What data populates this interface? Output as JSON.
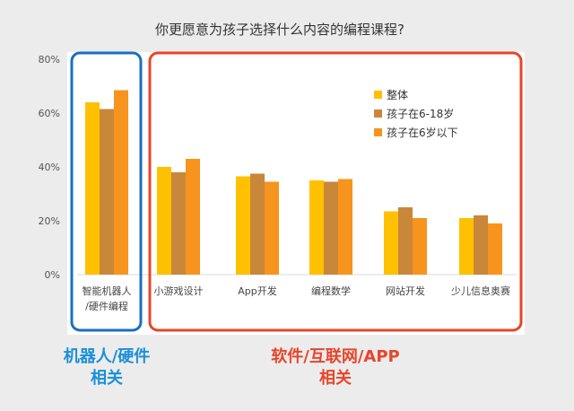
{
  "chart_data": {
    "type": "bar",
    "title": "你更愿意为孩子选择什么内容的编程课程?",
    "categories": [
      [
        "智能机器人",
        "/硬件编程"
      ],
      [
        "小游戏设计"
      ],
      [
        "App开发"
      ],
      [
        "编程数学"
      ],
      [
        "网站开发"
      ],
      [
        "少儿信息奥赛"
      ]
    ],
    "series": [
      {
        "name": "整体",
        "color": "#ffc000",
        "values": [
          64,
          40,
          36.5,
          35,
          23.5,
          21
        ]
      },
      {
        "name": "孩子在6-18岁",
        "color": "#c9873a",
        "values": [
          61.5,
          38,
          37.5,
          34.5,
          25,
          22
        ]
      },
      {
        "name": "孩子在6岁以下",
        "color": "#f7941d",
        "values": [
          68.5,
          43,
          34.5,
          35.5,
          21,
          19
        ]
      }
    ],
    "ylim": [
      0,
      80
    ],
    "yticks": [
      "0%",
      "20%",
      "40%",
      "60%",
      "80%"
    ],
    "legend_position": "top-right",
    "annotations": [
      {
        "lines": [
          "机器人/硬件",
          "相关"
        ],
        "color": "#1a8fd8",
        "box_color": "#1a6fc0"
      },
      {
        "lines": [
          "软件/互联网/APP",
          "相关"
        ],
        "color": "#e8452a",
        "box_color": "#e8452a"
      }
    ]
  }
}
